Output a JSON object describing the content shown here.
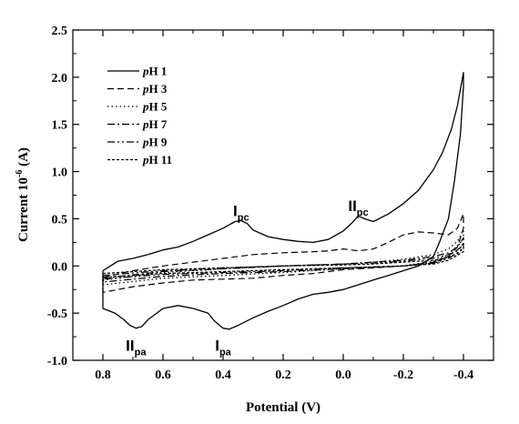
{
  "chart_data": {
    "type": "line",
    "xlabel": "Potential (V)",
    "ylabel": "Current 10-6 (A)",
    "ylabel_parts": {
      "main": "Current 10",
      "sup": "-6",
      "unit": " (A)"
    },
    "xlim": [
      0.9,
      -0.5
    ],
    "ylim": [
      -1.0,
      2.5
    ],
    "x_ticks": [
      0.8,
      0.6,
      0.4,
      0.2,
      0.0,
      -0.2,
      -0.4
    ],
    "x_tick_labels": [
      "0.8",
      "0.6",
      "0.4",
      "0.2",
      "0.0",
      "-0.2",
      "-0.4"
    ],
    "y_ticks": [
      -1.0,
      -0.5,
      0.0,
      0.5,
      1.0,
      1.5,
      2.0,
      2.5
    ],
    "y_tick_labels": [
      "-1.0",
      "-0.5",
      "0.0",
      "0.5",
      "1.0",
      "1.5",
      "2.0",
      "2.5"
    ],
    "grid": false,
    "legend_position": "top-left",
    "series": [
      {
        "name": "pH 1",
        "name_parts": [
          "p",
          "H 1"
        ],
        "style": "solid",
        "x": [
          0.8,
          0.75,
          0.7,
          0.65,
          0.6,
          0.55,
          0.5,
          0.45,
          0.4,
          0.36,
          0.34,
          0.32,
          0.3,
          0.25,
          0.2,
          0.15,
          0.1,
          0.05,
          0.0,
          -0.03,
          -0.05,
          -0.07,
          -0.1,
          -0.15,
          -0.2,
          -0.25,
          -0.3,
          -0.33,
          -0.36,
          -0.38,
          -0.4,
          -0.4,
          -0.39,
          -0.37,
          -0.35,
          -0.32,
          -0.3,
          -0.25,
          -0.2,
          -0.15,
          -0.1,
          -0.05,
          0.0,
          0.05,
          0.1,
          0.15,
          0.2,
          0.25,
          0.3,
          0.35,
          0.38,
          0.4,
          0.43,
          0.45,
          0.5,
          0.55,
          0.6,
          0.65,
          0.67,
          0.69,
          0.71,
          0.73,
          0.76,
          0.8,
          0.8
        ],
        "y": [
          -0.05,
          0.05,
          0.08,
          0.12,
          0.17,
          0.2,
          0.26,
          0.33,
          0.4,
          0.47,
          0.48,
          0.45,
          0.38,
          0.31,
          0.28,
          0.26,
          0.25,
          0.28,
          0.37,
          0.46,
          0.53,
          0.5,
          0.47,
          0.55,
          0.66,
          0.8,
          1.02,
          1.2,
          1.45,
          1.7,
          2.05,
          1.9,
          1.4,
          0.9,
          0.5,
          0.25,
          0.1,
          0.0,
          -0.05,
          -0.1,
          -0.15,
          -0.2,
          -0.25,
          -0.28,
          -0.3,
          -0.35,
          -0.42,
          -0.48,
          -0.55,
          -0.63,
          -0.67,
          -0.66,
          -0.58,
          -0.5,
          -0.45,
          -0.42,
          -0.45,
          -0.57,
          -0.64,
          -0.66,
          -0.63,
          -0.57,
          -0.5,
          -0.45,
          -0.05
        ]
      },
      {
        "name": "pH 3",
        "name_parts": [
          "p",
          "H 3"
        ],
        "style": "dashed",
        "x": [
          0.8,
          0.7,
          0.6,
          0.5,
          0.4,
          0.3,
          0.2,
          0.1,
          0.05,
          0.0,
          -0.05,
          -0.1,
          -0.15,
          -0.2,
          -0.25,
          -0.3,
          -0.35,
          -0.38,
          -0.4,
          -0.4,
          -0.38,
          -0.35,
          -0.3,
          -0.2,
          -0.1,
          0.0,
          0.1,
          0.2,
          0.3,
          0.4,
          0.5,
          0.6,
          0.7,
          0.8,
          0.8
        ],
        "y": [
          -0.12,
          -0.05,
          0.0,
          0.04,
          0.08,
          0.12,
          0.14,
          0.15,
          0.16,
          0.18,
          0.16,
          0.18,
          0.25,
          0.33,
          0.36,
          0.35,
          0.33,
          0.4,
          0.55,
          0.4,
          0.2,
          0.1,
          0.03,
          0.0,
          -0.02,
          -0.04,
          -0.08,
          -0.1,
          -0.13,
          -0.14,
          -0.15,
          -0.18,
          -0.22,
          -0.28,
          -0.12
        ]
      },
      {
        "name": "pH 5",
        "name_parts": [
          "p",
          "H 5"
        ],
        "style": "dotted",
        "x": [
          0.8,
          0.6,
          0.4,
          0.2,
          0.0,
          -0.1,
          -0.2,
          -0.3,
          -0.35,
          -0.38,
          -0.4,
          -0.4,
          -0.35,
          -0.3,
          -0.2,
          0.0,
          0.2,
          0.4,
          0.6,
          0.8,
          0.8
        ],
        "y": [
          -0.15,
          -0.07,
          -0.03,
          0.0,
          0.02,
          0.04,
          0.07,
          0.12,
          0.18,
          0.26,
          0.38,
          0.28,
          0.12,
          0.05,
          0.0,
          -0.03,
          -0.07,
          -0.1,
          -0.13,
          -0.2,
          -0.15
        ]
      },
      {
        "name": "pH 7",
        "name_parts": [
          "p",
          "H 7"
        ],
        "style": "dashdot",
        "x": [
          0.8,
          0.6,
          0.4,
          0.2,
          0.0,
          -0.1,
          -0.2,
          -0.3,
          -0.35,
          -0.38,
          -0.4,
          -0.4,
          -0.35,
          -0.3,
          -0.2,
          0.0,
          0.2,
          0.4,
          0.6,
          0.8,
          0.8
        ],
        "y": [
          -0.13,
          -0.06,
          -0.03,
          0.0,
          0.02,
          0.04,
          0.06,
          0.1,
          0.14,
          0.2,
          0.3,
          0.22,
          0.1,
          0.04,
          0.0,
          -0.03,
          -0.06,
          -0.08,
          -0.11,
          -0.17,
          -0.13
        ]
      },
      {
        "name": "pH 9",
        "name_parts": [
          "p",
          "H 9"
        ],
        "style": "dashdotdot",
        "x": [
          0.8,
          0.6,
          0.4,
          0.2,
          0.0,
          -0.1,
          -0.2,
          -0.3,
          -0.35,
          -0.38,
          -0.4,
          -0.4,
          -0.35,
          -0.3,
          -0.2,
          0.0,
          0.2,
          0.4,
          0.6,
          0.8,
          0.8
        ],
        "y": [
          -0.1,
          -0.05,
          -0.02,
          0.0,
          0.02,
          0.03,
          0.05,
          0.08,
          0.12,
          0.16,
          0.24,
          0.18,
          0.08,
          0.03,
          0.0,
          -0.02,
          -0.05,
          -0.07,
          -0.09,
          -0.14,
          -0.1
        ]
      },
      {
        "name": "pH 11",
        "name_parts": [
          "p",
          "H 11"
        ],
        "style": "shortdash",
        "x": [
          0.8,
          0.6,
          0.4,
          0.2,
          0.0,
          -0.1,
          -0.2,
          -0.3,
          -0.35,
          -0.38,
          -0.4,
          -0.4,
          -0.35,
          -0.3,
          -0.2,
          0.0,
          0.2,
          0.4,
          0.6,
          0.8,
          0.8
        ],
        "y": [
          -0.08,
          -0.04,
          -0.02,
          0.0,
          0.01,
          0.02,
          0.04,
          0.06,
          0.09,
          0.13,
          0.2,
          0.15,
          0.06,
          0.02,
          0.0,
          -0.02,
          -0.04,
          -0.06,
          -0.08,
          -0.12,
          -0.08
        ]
      }
    ],
    "annotations": [
      {
        "main": "I",
        "sub": "pc",
        "x": 0.34,
        "y": 0.53
      },
      {
        "main": "II",
        "sub": "pc",
        "x": -0.05,
        "y": 0.58
      },
      {
        "main": "II",
        "sub": "pa",
        "x": 0.69,
        "y": -0.9
      },
      {
        "main": "I",
        "sub": "pa",
        "x": 0.4,
        "y": -0.9
      }
    ]
  }
}
